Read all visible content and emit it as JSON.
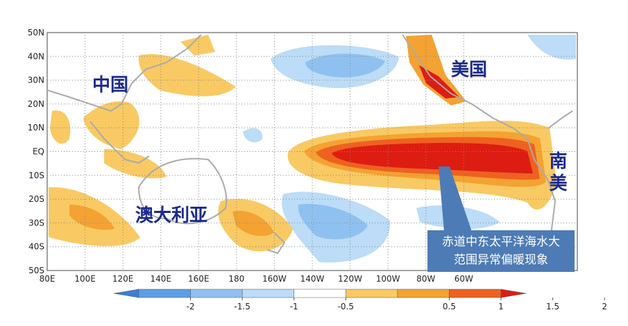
{
  "map": {
    "lat_labels": [
      "50N",
      "40N",
      "30N",
      "20N",
      "10N",
      "EQ",
      "10S",
      "20S",
      "30S",
      "40S",
      "50S"
    ],
    "lon_labels": [
      "80E",
      "100E",
      "120E",
      "140E",
      "160E",
      "180",
      "160W",
      "140W",
      "120W",
      "100W",
      "80W",
      "60W"
    ],
    "regions": {
      "china": "中国",
      "usa": "美国",
      "australia": "澳大利亚",
      "south_america": "南美"
    },
    "callout": [
      "赤道中东太平洋海水大",
      "范围异常偏暖现象"
    ]
  },
  "colorbar": {
    "ticks": [
      -2,
      -1.5,
      -1,
      -0.5,
      0.5,
      1,
      1.5,
      2
    ],
    "colors": [
      "#3b7fd6",
      "#5d9fe6",
      "#8fc1f0",
      "#bcdcf7",
      "#ffffff",
      "#f9c963",
      "#f4a232",
      "#ef6120",
      "#dd1d12"
    ]
  }
}
